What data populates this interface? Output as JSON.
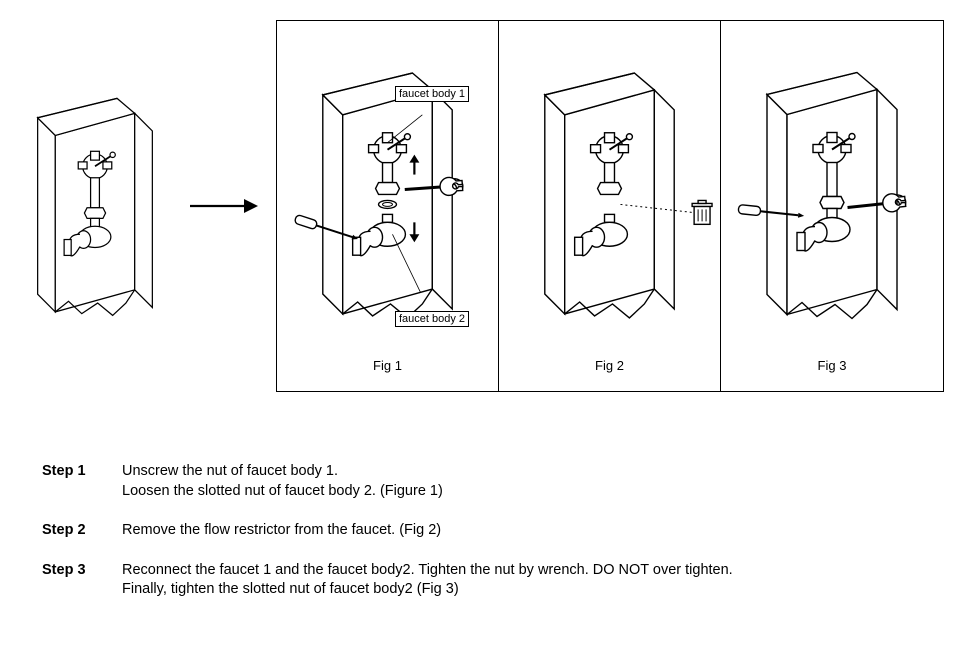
{
  "colors": {
    "stroke": "#000000",
    "background": "#ffffff",
    "text": "#000000"
  },
  "figures": {
    "fig1": {
      "caption": "Fig 1",
      "label_top": "faucet body 1",
      "label_bottom": "faucet body 2"
    },
    "fig2": {
      "caption": "Fig 2"
    },
    "fig3": {
      "caption": "Fig 3"
    }
  },
  "steps": [
    {
      "label": "Step 1",
      "text": "Unscrew the nut of faucet body 1.\nLoosen the slotted nut of faucet body 2. (Figure 1)"
    },
    {
      "label": "Step 2",
      "text": "Remove the flow restrictor from the faucet. (Fig 2)"
    },
    {
      "label": "Step 3",
      "text": "Reconnect the faucet 1 and the faucet body2. Tighten the nut by wrench. DO NOT over tighten.\nFinally, tighten the slotted nut of faucet body2 (Fig 3)"
    }
  ],
  "diagram_style": {
    "stroke_width": 1.4,
    "stroke_width_bold": 2.2,
    "font_size_callout": 11,
    "font_size_caption": 13,
    "font_size_step": 14.5
  }
}
